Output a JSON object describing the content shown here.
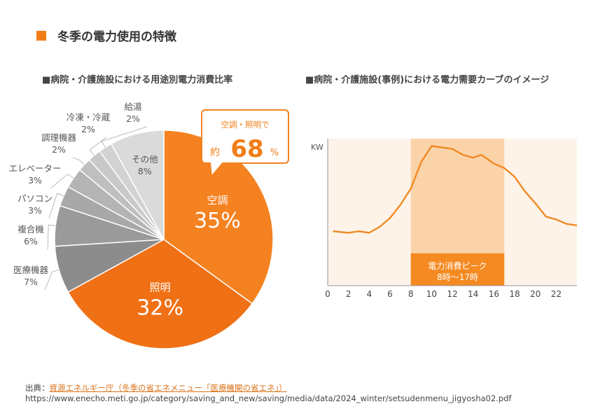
{
  "page": {
    "title": "冬季の電力使用の特徴",
    "accent_color": "#f07d17"
  },
  "left_chart": {
    "subtitle": "■病院・介護施設における用途別電力消費比率",
    "callout": {
      "line1": "空調・照明で",
      "prefix": "約",
      "value": "68",
      "unit": "%"
    }
  },
  "right_chart": {
    "subtitle": "■病院・介護施設(事例)における電力需要カーブのイメージ",
    "peak_label_line1": "電力消費ピーク",
    "peak_label_line2": "8時～17時"
  },
  "source": {
    "prefix": "出典：",
    "link_text": "資源エネルギー庁（冬季の省エネメニュー「医療機関の省エネ」）",
    "url": "https://www.enecho.meti.go.jp/category/saving_and_new/saving/media/data/2024_winter/setsudenmenu_jigyosha02.pdf"
  },
  "chart_data": [
    {
      "type": "pie",
      "title": "",
      "slices": [
        {
          "label": "空調",
          "value": 35,
          "display": "35%",
          "color": "#f58220"
        },
        {
          "label": "照明",
          "value": 32,
          "display": "32%",
          "color": "#f07015"
        },
        {
          "label": "医療機器",
          "value": 7,
          "display": "7%",
          "color": "#8c8c8c"
        },
        {
          "label": "複合機",
          "value": 6,
          "display": "6%",
          "color": "#9a9a9a"
        },
        {
          "label": "パソコン",
          "value": 3,
          "display": "3%",
          "color": "#a8a8a8"
        },
        {
          "label": "エレベーター",
          "value": 3,
          "display": "3%",
          "color": "#b4b4b4"
        },
        {
          "label": "調理機器",
          "value": 2,
          "display": "2%",
          "color": "#bfbfbf"
        },
        {
          "label": "冷凍・冷蔵",
          "value": 2,
          "display": "2%",
          "color": "#c9c9c9"
        },
        {
          "label": "給湯",
          "value": 2,
          "display": "2%",
          "color": "#d2d2d2"
        },
        {
          "label": "その他",
          "value": 8,
          "display": "8%",
          "color": "#dadada"
        }
      ]
    },
    {
      "type": "line",
      "title": "",
      "ylabel": "KW",
      "xlabel": "",
      "x_ticks": [
        0,
        2,
        4,
        6,
        8,
        10,
        12,
        14,
        16,
        18,
        20,
        22
      ],
      "xlim": [
        0,
        24
      ],
      "ylim": [
        0,
        100
      ],
      "highlight_range": [
        8,
        17
      ],
      "line_color": "#f08a24",
      "series": [
        {
          "x": [
            0.5,
            2,
            3,
            4,
            5,
            6,
            7,
            8,
            9,
            10,
            11,
            12,
            13,
            14,
            14.8,
            16,
            17,
            18,
            19,
            20,
            21,
            22,
            23,
            24
          ],
          "values": [
            37,
            36,
            37,
            36,
            40,
            46,
            55,
            66,
            84,
            95,
            94,
            93,
            89,
            87,
            89,
            83,
            80,
            74,
            64,
            56,
            47,
            45,
            42,
            41
          ]
        }
      ]
    }
  ]
}
